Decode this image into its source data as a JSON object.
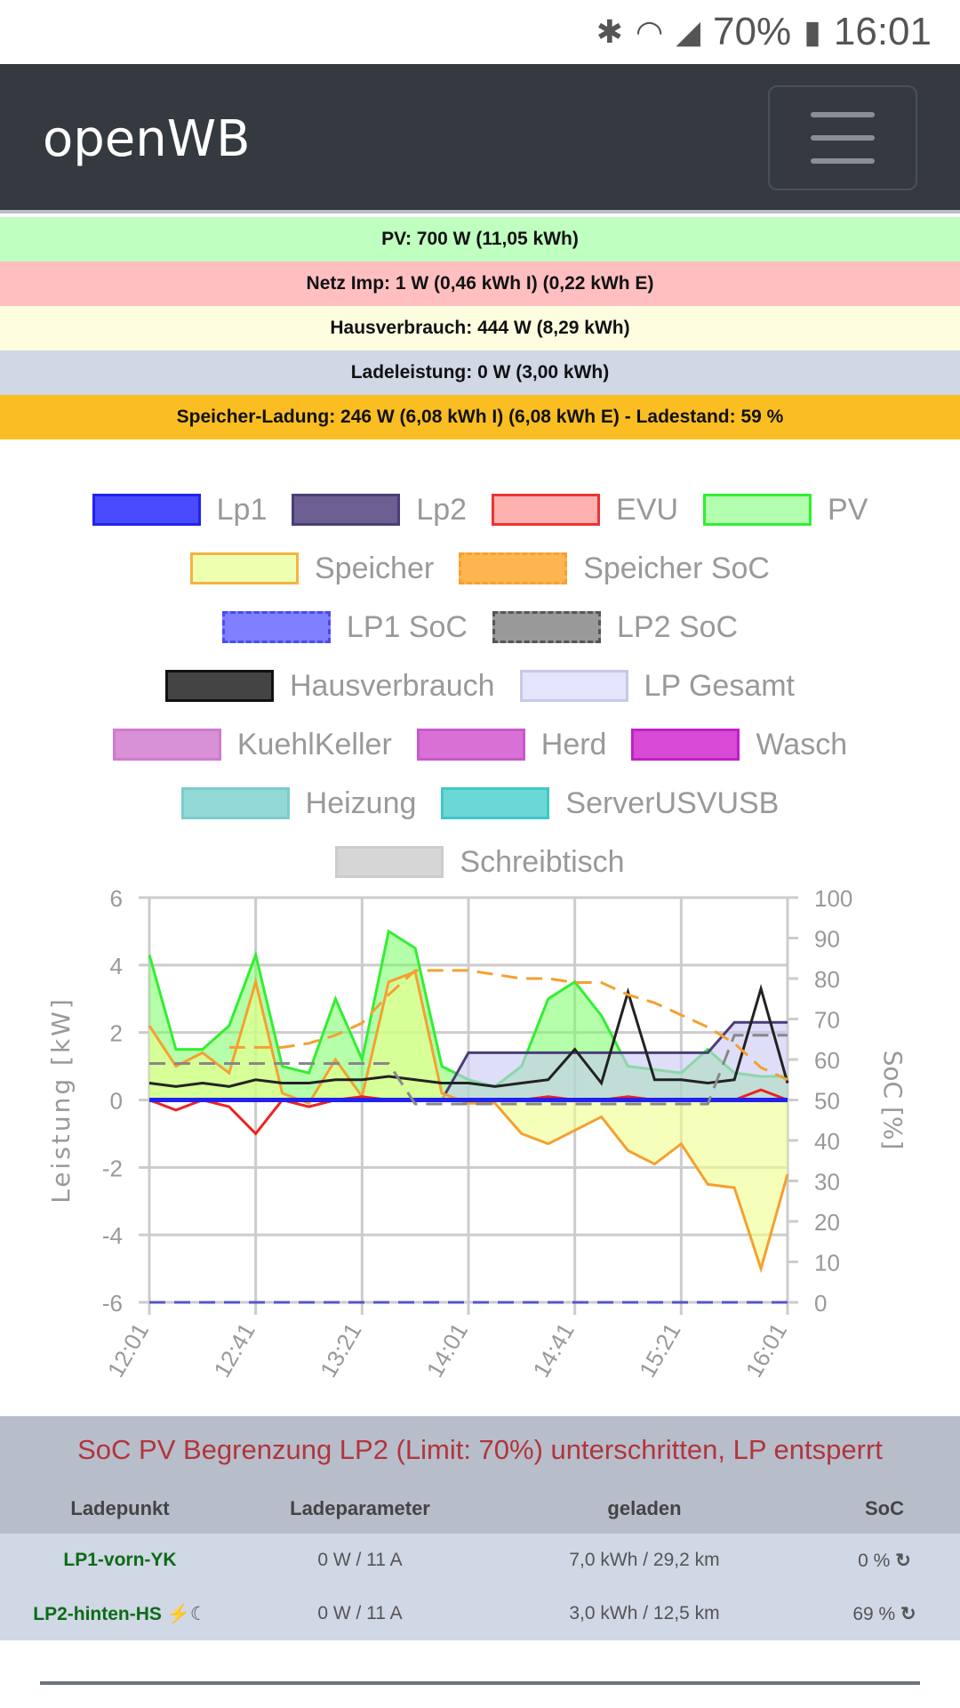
{
  "status": {
    "battery": "70%",
    "time": "16:01"
  },
  "header": {
    "title": "openWB"
  },
  "bars": [
    {
      "text": "PV: 700 W (11,05 kWh)",
      "color": "#bfffc0"
    },
    {
      "text": "Netz Imp: 1 W (0,46 kWh I) (0,22 kWh E)",
      "color": "#ffbfc0"
    },
    {
      "text": "Hausverbrauch: 444 W (8,29 kWh)",
      "color": "#fefde0"
    },
    {
      "text": "Ladeleistung: 0 W (3,00 kWh)",
      "color": "#d0d7e5"
    },
    {
      "text": "Speicher-Ladung: 246 W (6,08 kWh I) (6,08 kWh E) - Ladestand: 59 %",
      "color": "#fbbe22"
    }
  ],
  "legend": [
    [
      {
        "label": "Lp1",
        "fill": "#4a4aff",
        "border": "#2222ee"
      },
      {
        "label": "Lp2",
        "fill": "#6e5f92",
        "border": "#4a3f78"
      },
      {
        "label": "EVU",
        "fill": "#ffb0b0",
        "border": "#ee3333"
      },
      {
        "label": "PV",
        "fill": "#b2ffb0",
        "border": "#33ee33"
      }
    ],
    [
      {
        "label": "Speicher",
        "fill": "#eeffb0",
        "border": "#f5b342"
      },
      {
        "label": "Speicher SoC",
        "fill": "#ffb54f",
        "border": "#f5a030",
        "dashed": true
      }
    ],
    [
      {
        "label": "LP1 SoC",
        "fill": "#7f7fff",
        "border": "#4b4bee",
        "dashed": true
      },
      {
        "label": "LP2 SoC",
        "fill": "#999999",
        "border": "#555555",
        "dashed": true
      }
    ],
    [
      {
        "label": "Hausverbrauch",
        "fill": "#444444",
        "border": "#111111"
      },
      {
        "label": "LP Gesamt",
        "fill": "#e4e4fc",
        "border": "#c8c8e8"
      }
    ],
    [
      {
        "label": "KuehlKeller",
        "fill": "#d890d6",
        "border": "#d07ad0"
      },
      {
        "label": "Herd",
        "fill": "#d870d6",
        "border": "#c858cc"
      },
      {
        "label": "Wasch",
        "fill": "#d84ad6",
        "border": "#c020c6"
      }
    ],
    [
      {
        "label": "Heizung",
        "fill": "#92d8d6",
        "border": "#7ccccc"
      },
      {
        "label": "ServerUSVUSB",
        "fill": "#6cd8d6",
        "border": "#40c8c8"
      }
    ],
    [
      {
        "label": "Schreibtisch",
        "fill": "#d6d6d6",
        "border": "#cccccc"
      }
    ]
  ],
  "chart_data": {
    "type": "line",
    "xlabel": "",
    "ylabel": "Leistung [kW]",
    "y2label": "SoC [%]",
    "ylim": [
      -6,
      6
    ],
    "y2lim": [
      0,
      100
    ],
    "yticks": [
      "6",
      "4",
      "2",
      "0",
      "-2",
      "-4",
      "-6"
    ],
    "y2ticks": [
      "100",
      "90",
      "80",
      "70",
      "60",
      "50",
      "40",
      "30",
      "20",
      "10",
      "0"
    ],
    "xticks": [
      "12:01",
      "12:41",
      "13:21",
      "14:01",
      "14:41",
      "15:21",
      "16:01"
    ],
    "x_minutes": [
      0,
      10,
      20,
      30,
      40,
      50,
      60,
      70,
      80,
      90,
      100,
      110,
      120,
      130,
      140,
      150,
      160,
      170,
      180,
      190,
      200,
      210,
      220,
      230,
      240
    ],
    "series": [
      {
        "name": "PV",
        "color": "#33ee33",
        "fill": "rgba(120,255,100,0.55)",
        "values": [
          4.3,
          1.5,
          1.5,
          2.2,
          4.3,
          1.0,
          0.8,
          3.0,
          1.2,
          5.0,
          4.5,
          1.0,
          0.6,
          0.4,
          1.0,
          3.0,
          3.5,
          2.5,
          1.0,
          0.9,
          0.8,
          1.5,
          0.8,
          0.7,
          0.7
        ]
      },
      {
        "name": "LP Gesamt",
        "color": "#4a3f78",
        "fill": "rgba(200,200,245,0.6)",
        "values": [
          0,
          0,
          0,
          0,
          0,
          0,
          0,
          0,
          0,
          0,
          0,
          0,
          1.4,
          1.4,
          1.4,
          1.4,
          1.4,
          1.4,
          1.4,
          1.4,
          1.4,
          1.4,
          2.3,
          2.3,
          2.3
        ]
      },
      {
        "name": "Speicher",
        "color": "#f5a030",
        "fill": "rgba(238,255,140,0.6)",
        "values": [
          2.2,
          1.0,
          1.4,
          0.8,
          3.5,
          0.2,
          -0.1,
          1.2,
          0.1,
          3.5,
          3.8,
          0.2,
          -0.1,
          -0.1,
          -1.0,
          -1.3,
          -0.9,
          -0.5,
          -1.5,
          -1.9,
          -1.3,
          -2.5,
          -2.6,
          -5.0,
          -2.2
        ]
      },
      {
        "name": "Hausverbrauch",
        "color": "#222222",
        "values": [
          0.5,
          0.4,
          0.5,
          0.4,
          0.6,
          0.5,
          0.5,
          0.6,
          0.6,
          0.7,
          0.6,
          0.5,
          0.5,
          0.4,
          0.5,
          0.6,
          1.5,
          0.5,
          3.2,
          0.6,
          0.6,
          0.5,
          0.6,
          3.3,
          0.5
        ]
      },
      {
        "name": "EVU",
        "color": "#ee2222",
        "values": [
          0,
          -0.3,
          0,
          -0.2,
          -1.0,
          0,
          -0.2,
          0,
          0.1,
          0,
          0,
          0,
          0,
          0,
          0,
          0.1,
          0,
          0,
          0.1,
          0,
          0,
          0,
          0,
          0.3,
          0
        ]
      },
      {
        "name": "Lp1",
        "color": "#2222ee",
        "values": [
          0,
          0,
          0,
          0,
          0,
          0,
          0,
          0,
          0,
          0,
          0,
          0,
          0,
          0,
          0,
          0,
          0,
          0,
          0,
          0,
          0,
          0,
          0,
          0,
          0
        ]
      },
      {
        "name": "Speicher SoC",
        "color": "#f5a030",
        "dashed": true,
        "axis": "right",
        "values": [
          null,
          null,
          null,
          63,
          63,
          63,
          64,
          66,
          69,
          76,
          82,
          82,
          82,
          81,
          80,
          80,
          79,
          79,
          76,
          74,
          71,
          68,
          64,
          58,
          55
        ]
      },
      {
        "name": "LP2 SoC",
        "color": "#888888",
        "dashed": true,
        "axis": "right",
        "values": [
          59,
          59,
          59,
          59,
          59,
          59,
          59,
          59,
          59,
          59,
          49,
          49,
          49,
          49,
          49,
          49,
          49,
          49,
          49,
          49,
          49,
          49,
          66,
          66,
          66
        ]
      },
      {
        "name": "LP1 SoC",
        "color": "#5555cc",
        "dashed": true,
        "axis": "right",
        "values": [
          0,
          0,
          0,
          0,
          0,
          0,
          0,
          0,
          0,
          0,
          0,
          0,
          0,
          0,
          0,
          0,
          0,
          0,
          0,
          0,
          0,
          0,
          0,
          0,
          0
        ]
      }
    ]
  },
  "footer": {
    "message": "SoC PV Begrenzung LP2 (Limit: 70%) unterschritten, LP entsperrt",
    "headers": [
      "Ladepunkt",
      "Ladeparameter",
      "geladen",
      "SoC"
    ],
    "rows": [
      {
        "name": "LP1-vorn-YK",
        "param": "0 W / 11 A",
        "charged": "7,0 kWh / 29,2 km",
        "soc": "0 %"
      },
      {
        "name": "LP2-hinten-HS",
        "param": "0 W / 11 A",
        "charged": "3,0 kWh / 12,5 km",
        "soc": "69 %"
      }
    ]
  }
}
